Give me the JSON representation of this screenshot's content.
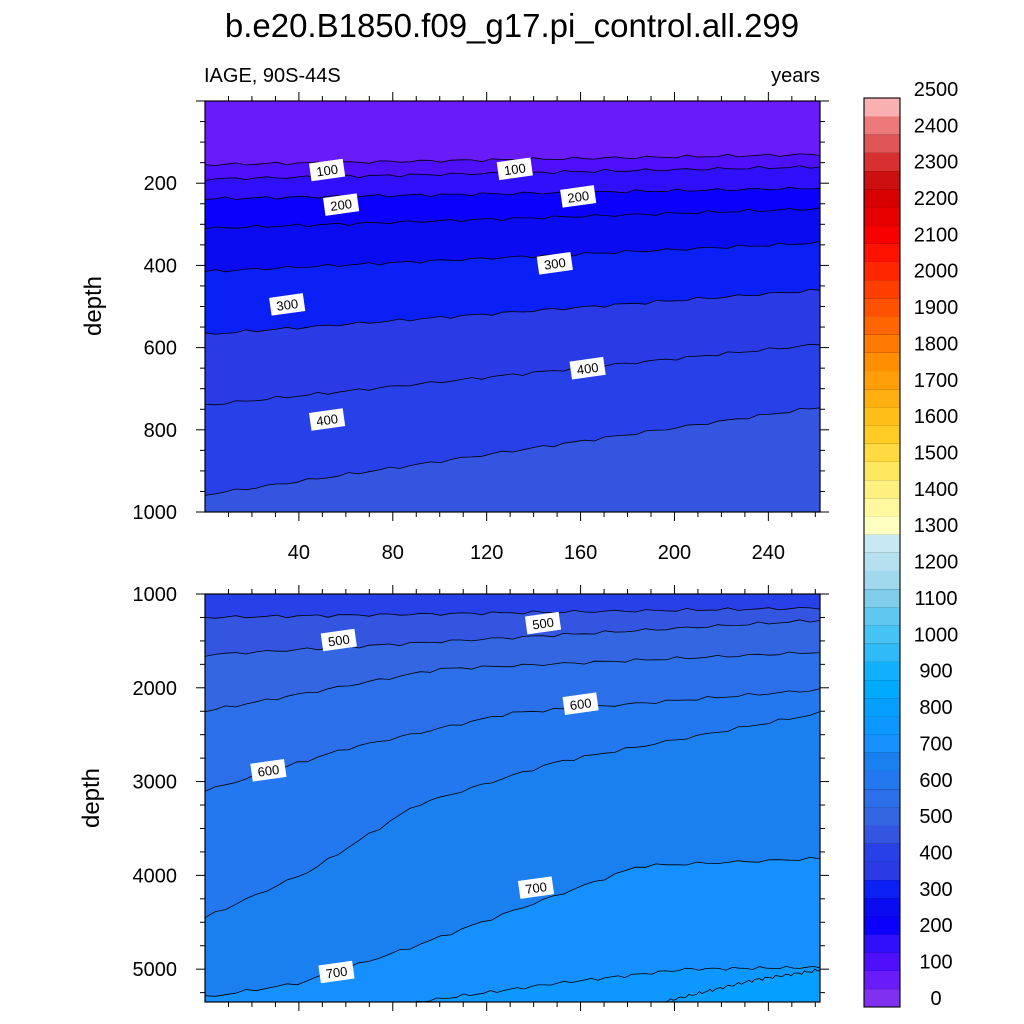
{
  "chart_data": {
    "type": "contour",
    "title": "b.e20.B1850.f09_g17.pi_control.all.299",
    "variable_label": "IAGE, 90S-44S",
    "units_label": "years",
    "x_ticks": [
      40,
      80,
      120,
      160,
      200,
      240
    ],
    "xlim": [
      0,
      262
    ],
    "ylabel": "depth",
    "upper_panel": {
      "ylim": [
        0,
        1000
      ],
      "y_ticks": [
        200,
        400,
        600,
        800,
        1000
      ],
      "contours": [
        {
          "level": 100,
          "depth_at_x0": 155,
          "depth_at_xend": 130
        },
        {
          "level": 150,
          "depth_at_x0": 190,
          "depth_at_xend": 160
        },
        {
          "level": 200,
          "depth_at_x0": 238,
          "depth_at_xend": 212
        },
        {
          "level": 250,
          "depth_at_x0": 310,
          "depth_at_xend": 262
        },
        {
          "level": 300,
          "depth_at_x0": 415,
          "depth_at_xend": 345
        },
        {
          "level": 350,
          "depth_at_x0": 568,
          "depth_at_xend": 460
        },
        {
          "level": 400,
          "depth_at_x0": 740,
          "depth_at_xend": 592
        },
        {
          "level": 450,
          "depth_at_x0": 958,
          "depth_at_xend": 745
        }
      ],
      "labels": [
        {
          "text": "100",
          "x": 52,
          "depth": 168
        },
        {
          "text": "100",
          "x": 132,
          "depth": 165
        },
        {
          "text": "200",
          "x": 58,
          "depth": 252
        },
        {
          "text": "200",
          "x": 159,
          "depth": 232
        },
        {
          "text": "300",
          "x": 35,
          "depth": 495
        },
        {
          "text": "300",
          "x": 149,
          "depth": 395
        },
        {
          "text": "400",
          "x": 52,
          "depth": 775
        },
        {
          "text": "400",
          "x": 163,
          "depth": 650
        }
      ]
    },
    "lower_panel": {
      "ylim": [
        1000,
        5350
      ],
      "y_ticks": [
        1000,
        2000,
        3000,
        4000,
        5000
      ],
      "contours": [
        {
          "level": 450,
          "points": [
            [
              0,
              1250
            ],
            [
              262,
              1150
            ]
          ]
        },
        {
          "level": 500,
          "points": [
            [
              0,
              1650
            ],
            [
              262,
              1280
            ]
          ]
        },
        {
          "level": 550,
          "points": [
            [
              0,
              2250
            ],
            [
              100,
              1800
            ],
            [
              262,
              1620
            ]
          ]
        },
        {
          "level": 600,
          "points": [
            [
              0,
              3100
            ],
            [
              60,
              2650
            ],
            [
              130,
              2270
            ],
            [
              262,
              2020
            ]
          ]
        },
        {
          "level": 650,
          "points": [
            [
              0,
              4450
            ],
            [
              45,
              3950
            ],
            [
              90,
              3250
            ],
            [
              150,
              2790
            ],
            [
              262,
              2270
            ]
          ]
        },
        {
          "level": 700,
          "points": [
            [
              0,
              5300
            ],
            [
              40,
              5150
            ],
            [
              90,
              4750
            ],
            [
              140,
              4300
            ],
            [
              185,
              3900
            ],
            [
              262,
              3820
            ]
          ]
        },
        {
          "level": 750,
          "points": [
            [
              90,
              5350
            ],
            [
              150,
              5150
            ],
            [
              205,
              5000
            ],
            [
              262,
              4980
            ]
          ]
        },
        {
          "level": 800,
          "points": [
            [
              195,
              5350
            ],
            [
              235,
              5110
            ],
            [
              262,
              5010
            ]
          ]
        }
      ],
      "labels": [
        {
          "text": "500",
          "x": 57,
          "depth": 1490
        },
        {
          "text": "500",
          "x": 144,
          "depth": 1310
        },
        {
          "text": "600",
          "x": 160,
          "depth": 2170
        },
        {
          "text": "600",
          "x": 27,
          "depth": 2880
        },
        {
          "text": "700",
          "x": 141,
          "depth": 4130
        },
        {
          "text": "700",
          "x": 56,
          "depth": 5030
        }
      ]
    },
    "colorbar": {
      "labels": [
        0,
        100,
        200,
        300,
        400,
        500,
        600,
        700,
        800,
        900,
        1000,
        1100,
        1200,
        1300,
        1400,
        1500,
        1600,
        1700,
        1800,
        1900,
        2000,
        2100,
        2200,
        2300,
        2400,
        2500
      ],
      "colors": [
        "#8030f0",
        "#6a1cf8",
        "#4e10fa",
        "#3010fb",
        "#0a00fc",
        "#0a0bf0",
        "#0b20f5",
        "#2a3ae4",
        "#2840e8",
        "#3355e0",
        "#3366e0",
        "#2b70e8",
        "#2378f0",
        "#1a80f0",
        "#1690ff",
        "#0d98ff",
        "#05a0ff",
        "#00aaff",
        "#10b0ff",
        "#30bbf8",
        "#45c3f5",
        "#60c8f0",
        "#80cdeb",
        "#a0d8ee",
        "#b5e0f0",
        "#c8e8f4",
        "#ffffc0",
        "#fff89e",
        "#fff080",
        "#ffe860",
        "#ffda40",
        "#ffcc26",
        "#ffbe18",
        "#ffb010",
        "#ff9e08",
        "#ff8e00",
        "#ff7a00",
        "#ff6500",
        "#ff5200",
        "#ff3e00",
        "#ff2600",
        "#ff1200",
        "#f80000",
        "#e80000",
        "#d80000",
        "#cc1010",
        "#d83030",
        "#e05555",
        "#ec7a7a",
        "#f8b0b0"
      ]
    }
  }
}
